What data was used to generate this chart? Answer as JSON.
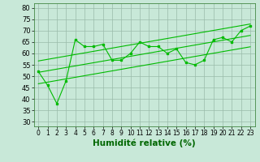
{
  "x": [
    0,
    1,
    2,
    3,
    4,
    5,
    6,
    7,
    8,
    9,
    10,
    11,
    12,
    13,
    14,
    15,
    16,
    17,
    18,
    19,
    20,
    21,
    22,
    23
  ],
  "y": [
    52,
    46,
    38,
    48,
    66,
    63,
    63,
    64,
    57,
    57,
    60,
    65,
    63,
    63,
    60,
    62,
    56,
    55,
    57,
    66,
    67,
    65,
    70,
    72
  ],
  "xlim": [
    -0.5,
    23.5
  ],
  "ylim": [
    28,
    82
  ],
  "yticks": [
    30,
    35,
    40,
    45,
    50,
    55,
    60,
    65,
    70,
    75,
    80
  ],
  "xtick_labels": [
    "0",
    "1",
    "2",
    "3",
    "4",
    "5",
    "6",
    "7",
    "8",
    "9",
    "10",
    "11",
    "12",
    "13",
    "14",
    "15",
    "16",
    "17",
    "18",
    "19",
    "20",
    "21",
    "22",
    "23"
  ],
  "xlabel": "Humidité relative (%)",
  "line_color": "#00bb00",
  "bg_color": "#c8e8d8",
  "grid_color": "#99bbaa",
  "label_fontsize": 7.5,
  "tick_fontsize": 6,
  "regression_offsets": [
    0,
    -5,
    5
  ],
  "reg_line_start_x": 0,
  "reg_line_end_x": 23
}
